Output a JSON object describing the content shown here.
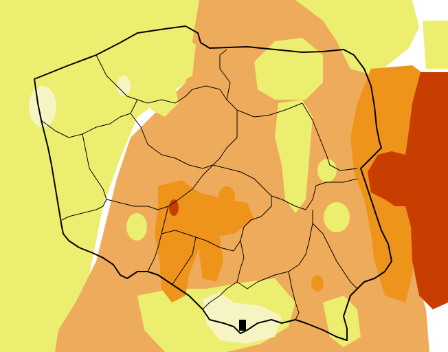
{
  "map": {
    "region": "Poland",
    "legend_visible": false,
    "colors": {
      "background": "#ffffff",
      "class_very_low": "#f7f4c4",
      "class_low": "#ebee6e",
      "class_medium": "#efab5c",
      "class_high": "#ef941b",
      "class_very_high": "#c83e00",
      "border": "#000000"
    }
  }
}
